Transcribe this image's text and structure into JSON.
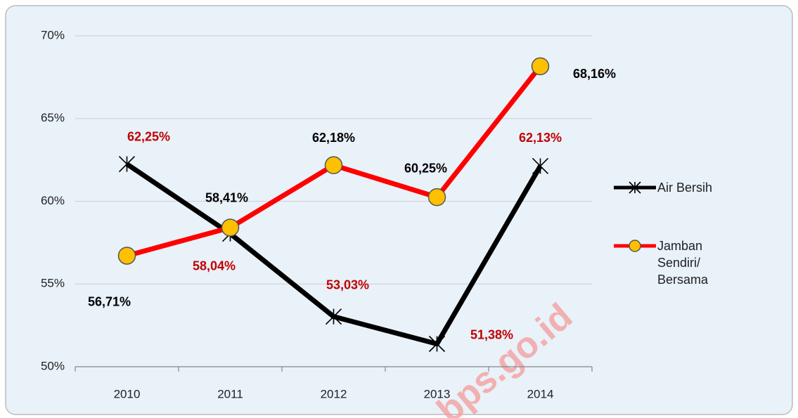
{
  "chart_data": {
    "type": "line",
    "categories": [
      "2010",
      "2011",
      "2012",
      "2013",
      "2014"
    ],
    "series": [
      {
        "name": "Air Bersih",
        "color": "#000000",
        "marker": "asterisk",
        "values": [
          62.25,
          58.04,
          53.03,
          51.38,
          62.13
        ],
        "value_labels": [
          "62,25%",
          "58,04%",
          "53,03%",
          "51,38%",
          "62,13%"
        ],
        "label_color": "#c00000"
      },
      {
        "name": "Jamban Sendiri/ Bersama",
        "color": "#ff0000",
        "marker": "circle",
        "marker_color": "#ffc000",
        "values": [
          56.71,
          58.41,
          62.18,
          60.25,
          68.16
        ],
        "value_labels": [
          "56,71%",
          "58,41%",
          "62,18%",
          "60,25%",
          "68,16%"
        ],
        "label_color": "#000000"
      }
    ],
    "ylim": [
      50,
      70
    ],
    "yticks": [
      {
        "value": 50,
        "label": "50%"
      },
      {
        "value": 55,
        "label": "55%"
      },
      {
        "value": 60,
        "label": "60%"
      },
      {
        "value": 65,
        "label": "65%"
      },
      {
        "value": 70,
        "label": "70%"
      }
    ],
    "grid": true,
    "legend": "right",
    "watermark": "bps.go.id"
  }
}
